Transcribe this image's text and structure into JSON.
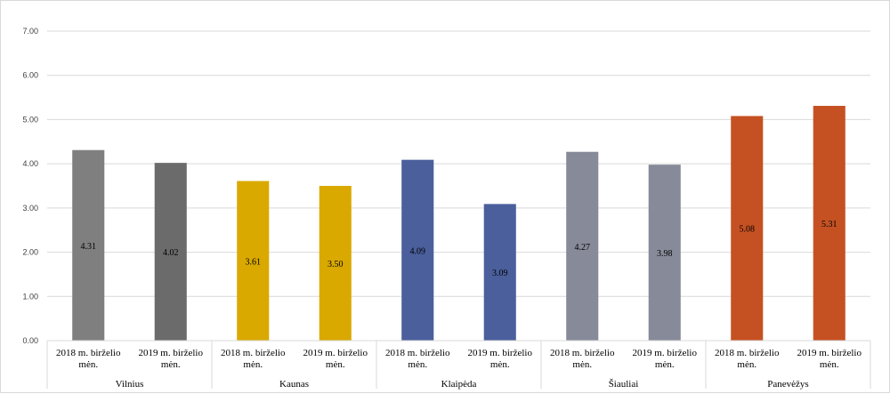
{
  "chart_data": {
    "type": "bar",
    "title": "",
    "xlabel": "",
    "ylabel": "",
    "ylim": [
      0,
      7
    ],
    "yticks": [
      "0.00",
      "1.00",
      "2.00",
      "3.00",
      "4.00",
      "5.00",
      "6.00",
      "7.00"
    ],
    "grid": true,
    "legend": "none",
    "groups": [
      {
        "name": "Vilnius",
        "color": "#7f7f7f",
        "bars": [
          {
            "category": [
              "2018 m. birželio",
              "mėn."
            ],
            "value": 4.31,
            "label": "4.31",
            "color": "#7f7f7f"
          },
          {
            "category": [
              "2019 m. birželio",
              "mėn."
            ],
            "value": 4.02,
            "label": "4.02",
            "color": "#6b6b6b"
          }
        ]
      },
      {
        "name": "Kaunas",
        "color": "#d9a900",
        "bars": [
          {
            "category": [
              "2018 m. birželio",
              "mėn."
            ],
            "value": 3.61,
            "label": "3.61",
            "color": "#d9a900"
          },
          {
            "category": [
              "2019 m. birželio",
              "mėn."
            ],
            "value": 3.5,
            "label": "3.50",
            "color": "#d9a900"
          }
        ]
      },
      {
        "name": "Klaipėda",
        "color": "#4a5f9c",
        "bars": [
          {
            "category": [
              "2018 m. birželio",
              "mėn."
            ],
            "value": 4.09,
            "label": "4.09",
            "color": "#4a5f9c"
          },
          {
            "category": [
              "2019 m. birželio",
              "mėn."
            ],
            "value": 3.09,
            "label": "3.09",
            "color": "#4a5f9c"
          }
        ]
      },
      {
        "name": "Šiauliai",
        "color": "#878a99",
        "bars": [
          {
            "category": [
              "2018 m. birželio",
              "mėn."
            ],
            "value": 4.27,
            "label": "4.27",
            "color": "#878a99"
          },
          {
            "category": [
              "2019 m. birželio",
              "mėn."
            ],
            "value": 3.98,
            "label": "3.98",
            "color": "#878a99"
          }
        ]
      },
      {
        "name": "Panevėžys",
        "color": "#c55123",
        "bars": [
          {
            "category": [
              "2018 m. birželio",
              "mėn."
            ],
            "value": 5.08,
            "label": "5.08",
            "color": "#c55123"
          },
          {
            "category": [
              "2019 m. birželio",
              "mėn."
            ],
            "value": 5.31,
            "label": "5.31",
            "color": "#c55123"
          }
        ]
      }
    ]
  }
}
